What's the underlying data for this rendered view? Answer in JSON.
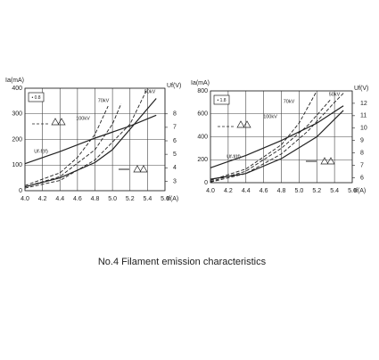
{
  "caption": "No.4 Filament emission characteristics",
  "chart_data": [
    {
      "type": "line",
      "y_label": "Ia(mA)",
      "y2_label": "Uf(V)",
      "x_label": "If(A)",
      "box_label": "• 0.8",
      "grid": true,
      "xlim": [
        4.0,
        5.6
      ],
      "xticks": [
        {
          "value": 4.0,
          "label": "4.0"
        },
        {
          "value": 4.2,
          "label": "4.2"
        },
        {
          "value": 4.4,
          "label": "4.4"
        },
        {
          "value": 4.6,
          "label": "4.6"
        },
        {
          "value": 4.8,
          "label": "4.8"
        },
        {
          "value": 5.0,
          "label": "5.0"
        },
        {
          "value": 5.2,
          "label": "5.2"
        },
        {
          "value": 5.4,
          "label": "5.4"
        },
        {
          "value": 5.6,
          "label": "5.6"
        }
      ],
      "ylim": [
        0,
        400
      ],
      "yticks": [
        0,
        100,
        200,
        300,
        400
      ],
      "y2lim": [
        2.3,
        9.9
      ],
      "y2ticks": [
        3,
        4,
        5,
        6,
        7,
        8
      ],
      "annotations": [
        "50kV",
        "70kV",
        "100kV",
        "Uf-f(If)"
      ],
      "series": [
        {
          "name": "Uf-f(If)",
          "axis": "y2",
          "color": "#222222",
          "dash": false,
          "x": [
            4.0,
            4.4,
            4.8,
            5.2,
            5.5
          ],
          "values": [
            4.3,
            5.2,
            6.2,
            7.1,
            7.9
          ]
        },
        {
          "color": "#222222",
          "dash": false,
          "x": [
            4.0,
            4.4,
            4.8,
            5.0,
            5.2,
            5.5
          ],
          "values": [
            15,
            50,
            110,
            160,
            240,
            360
          ]
        },
        {
          "name": "100kV",
          "color": "#222222",
          "dash": true,
          "x": [
            4.0,
            4.4,
            4.6,
            4.8,
            4.95
          ],
          "values": [
            20,
            70,
            130,
            220,
            330
          ]
        },
        {
          "name": "70kV",
          "color": "#222222",
          "dash": true,
          "x": [
            4.0,
            4.4,
            4.8,
            5.0,
            5.1
          ],
          "values": [
            15,
            55,
            160,
            260,
            340
          ]
        },
        {
          "name": "50kV",
          "color": "#222222",
          "dash": true,
          "x": [
            4.0,
            4.4,
            4.8,
            5.2,
            5.4
          ],
          "values": [
            10,
            40,
            120,
            260,
            400
          ]
        }
      ]
    },
    {
      "type": "line",
      "y_label": "Ia(mA)",
      "y2_label": "Uf(V)",
      "x_label": "If(A)",
      "box_label": "• 1.8",
      "grid": true,
      "xlim": [
        4.0,
        5.6
      ],
      "xticks": [
        {
          "value": 4.0,
          "label": "4.0"
        },
        {
          "value": 4.2,
          "label": "4.2"
        },
        {
          "value": 4.4,
          "label": "4.4"
        },
        {
          "value": 4.6,
          "label": "4.6"
        },
        {
          "value": 4.8,
          "label": "4.8"
        },
        {
          "value": 5.0,
          "label": "5.0"
        },
        {
          "value": 5.2,
          "label": "5.2"
        },
        {
          "value": 5.4,
          "label": "5.4"
        },
        {
          "value": 5.6,
          "label": "5.6"
        }
      ],
      "ylim": [
        0,
        800
      ],
      "yticks": [
        0,
        200,
        400,
        600,
        800
      ],
      "y2lim": [
        5.6,
        13
      ],
      "y2ticks": [
        6,
        7,
        8,
        9,
        10,
        11,
        12
      ],
      "annotations": [
        "50kV",
        "70kV",
        "100kV",
        "Uf-f(If)"
      ],
      "series": [
        {
          "name": "Uf-f(If)",
          "axis": "y2",
          "color": "#222222",
          "dash": false,
          "x": [
            4.0,
            4.4,
            4.8,
            5.2,
            5.5
          ],
          "values": [
            6.8,
            7.8,
            9.0,
            10.4,
            11.8
          ]
        },
        {
          "color": "#222222",
          "dash": false,
          "x": [
            4.0,
            4.4,
            4.8,
            5.2,
            5.5
          ],
          "values": [
            30,
            80,
            210,
            400,
            630
          ]
        },
        {
          "name": "100kV",
          "color": "#222222",
          "dash": true,
          "x": [
            4.0,
            4.4,
            4.8,
            5.0,
            5.2
          ],
          "values": [
            20,
            120,
            330,
            520,
            800
          ]
        },
        {
          "name": "70kV",
          "color": "#222222",
          "dash": true,
          "x": [
            4.0,
            4.4,
            4.8,
            5.1,
            5.35
          ],
          "values": [
            10,
            100,
            300,
            500,
            720
          ]
        },
        {
          "name": "50kV",
          "color": "#222222",
          "dash": true,
          "x": [
            4.0,
            4.4,
            4.8,
            5.1,
            5.4,
            5.5
          ],
          "values": [
            5,
            80,
            250,
            450,
            700,
            780
          ]
        }
      ]
    }
  ]
}
